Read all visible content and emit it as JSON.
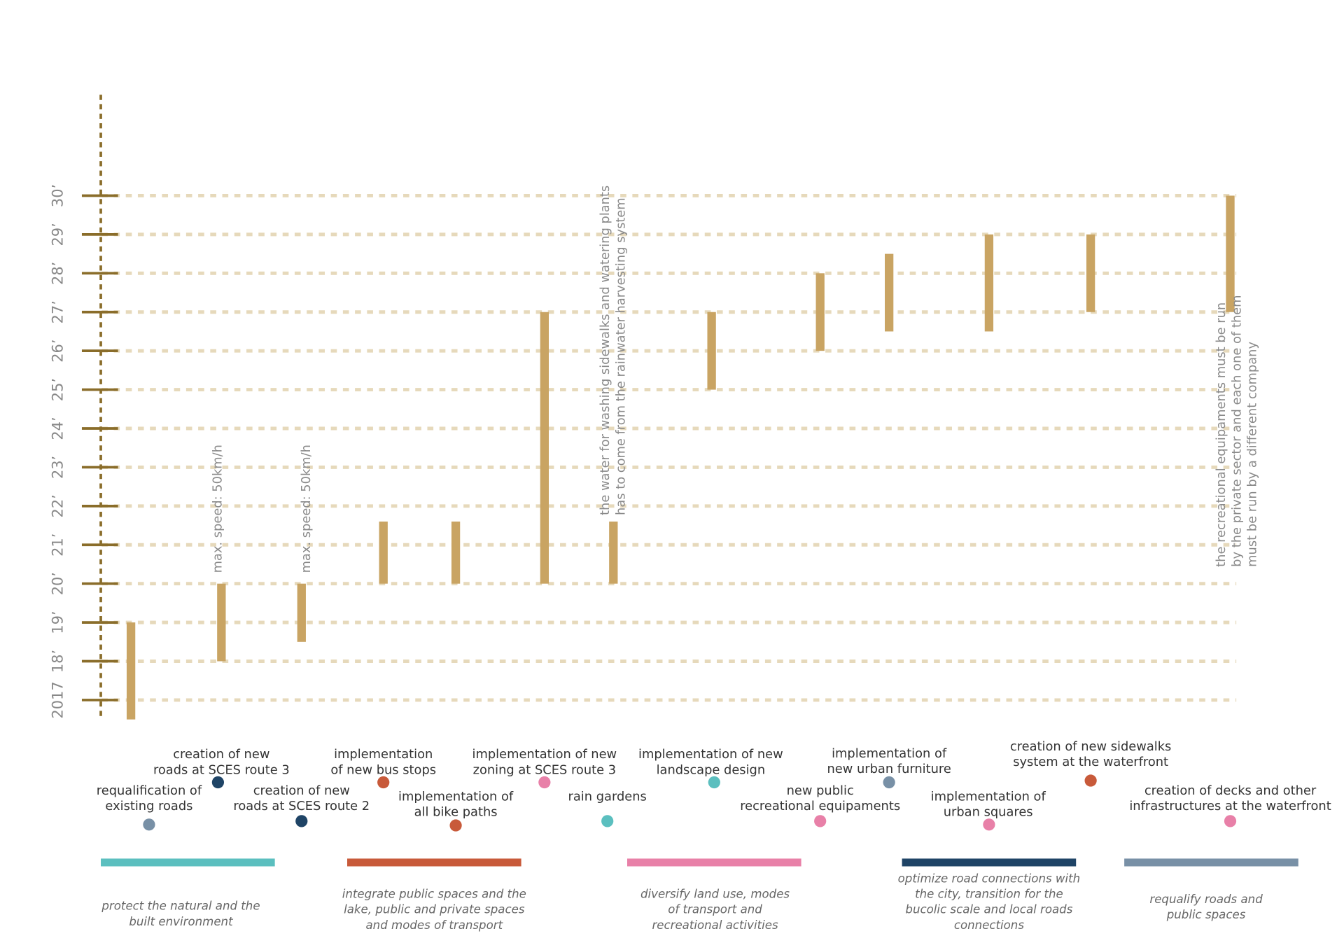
{
  "chart_data": {
    "type": "timeline",
    "ylim": [
      2016.5,
      2032.6
    ],
    "yticks": [
      2017,
      {
        "value": 2018,
        "label": "18’"
      },
      {
        "value": 2019,
        "label": "19’"
      },
      {
        "value": 2020,
        "label": "20’"
      },
      {
        "value": 2021,
        "label": "21’"
      },
      {
        "value": 2022,
        "label": "22’"
      },
      {
        "value": 2023,
        "label": "23’"
      },
      {
        "value": 2024,
        "label": "24’"
      },
      {
        "value": 2025,
        "label": "25’"
      },
      {
        "value": 2026,
        "label": "26’"
      },
      {
        "value": 2027,
        "label": "27’"
      },
      {
        "value": 2028,
        "label": "28’"
      },
      {
        "value": 2029,
        "label": "29’"
      },
      {
        "value": 2030,
        "label": "30’"
      }
    ],
    "grid": true,
    "bar_color": "#c9a463",
    "tasks": [
      {
        "name": [
          "requalification of",
          "existing roads"
        ],
        "start": 2016.5,
        "end": 2019,
        "color": "#7890a6"
      },
      {
        "name": [
          "creation of new",
          "roads at SCES route 3"
        ],
        "start": 2018,
        "end": 2020,
        "color": "#1f4466",
        "note": [
          "max. speed: 50km/h"
        ]
      },
      {
        "name": [
          "creation of new",
          "roads at SCES route 2"
        ],
        "start": 2018.5,
        "end": 2020,
        "color": "#1f4466",
        "note": [
          "max. speed: 50km/h"
        ]
      },
      {
        "name": [
          "implementation",
          "of new bus stops"
        ],
        "start": 2020,
        "end": 2021.6,
        "color": "#c85a3a"
      },
      {
        "name": [
          "implementation of",
          "all bike paths"
        ],
        "start": 2020,
        "end": 2021.6,
        "color": "#c85a3a"
      },
      {
        "name": [
          "implementation of new",
          "zoning at SCES route 3"
        ],
        "start": 2020,
        "end": 2027,
        "color": "#e880a8"
      },
      {
        "name": [
          "rain gardens"
        ],
        "start": 2020,
        "end": 2021.6,
        "color": "#5bbfbf",
        "note": [
          "the water for washing sidewalks and watering plants",
          "has to come from the rainwater harvesting system"
        ]
      },
      {
        "name": [
          "implementation of new",
          "landscape design"
        ],
        "start": 2025,
        "end": 2027,
        "color": "#5bbfbf"
      },
      {
        "name": [
          "new public",
          "recreational equipaments"
        ],
        "start": 2026,
        "end": 2028,
        "color": "#e880a8"
      },
      {
        "name": [
          "implementation of",
          "new urban furniture"
        ],
        "start": 2026.5,
        "end": 2028.5,
        "color": "#7890a6"
      },
      {
        "name": [
          "implementation of",
          "urban squares"
        ],
        "start": 2026.5,
        "end": 2029,
        "color": "#e880a8"
      },
      {
        "name": [
          "creation of new sidewalks",
          "system at the waterfront"
        ],
        "start": 2027,
        "end": 2029,
        "color": "#c85a3a"
      },
      {
        "name": [
          "creation of decks and other",
          "infrastructures at the waterfront"
        ],
        "start": 2027,
        "end": 2030,
        "color": "#e880a8",
        "note": [
          "the recreational equipaments must be run",
          "by the private sector and each one of them",
          "must be run by a different company"
        ]
      }
    ],
    "groups": [
      {
        "name": [
          "protect the natural and the",
          "built environment"
        ],
        "color": "#5bbfbf"
      },
      {
        "name": [
          "integrate public spaces and the",
          "lake, public and private spaces",
          "and modes of transport"
        ],
        "color": "#c85a3a"
      },
      {
        "name": [
          "diversify land use, modes",
          "of transport and",
          "recreational activities"
        ],
        "color": "#e880a8"
      },
      {
        "name": [
          "optimize road connections with",
          "the city, transition for the",
          "bucolic scale and local roads",
          "connections"
        ],
        "color": "#1f4466"
      },
      {
        "name": [
          "requalify roads and",
          "public spaces"
        ],
        "color": "#7890a6"
      }
    ]
  }
}
